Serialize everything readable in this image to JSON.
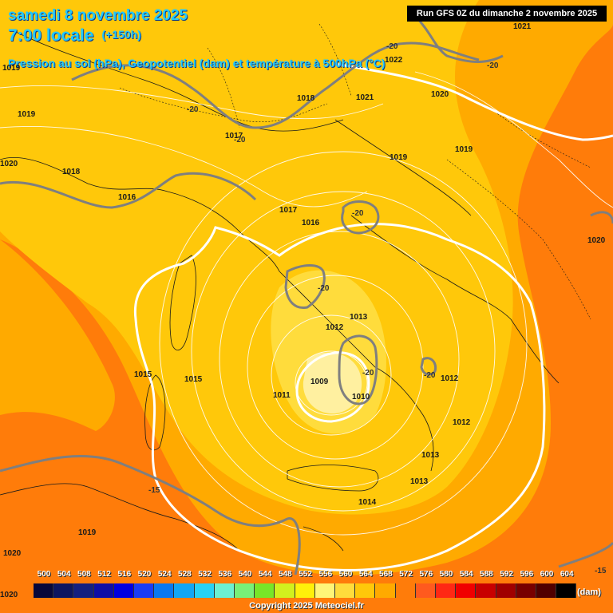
{
  "header": {
    "date_line": "samedi 8 novembre 2025",
    "time_line": "7:00 locale",
    "lead_time": "(+150h)",
    "subtitle": "Pression au sol (hPa), Geopotentiel (dam) et température à 500hPa (°C)",
    "run_info": "Run GFS 0Z du dimanche 2 novembre 2025"
  },
  "footer": {
    "copyright": "Copyright 2025 Meteociel.fr"
  },
  "legend": {
    "unit": "(dam)",
    "scale": [
      {
        "label": "500",
        "color": "#08083a"
      },
      {
        "label": "504",
        "color": "#0d1660"
      },
      {
        "label": "508",
        "color": "#14207f"
      },
      {
        "label": "512",
        "color": "#0e0ea6"
      },
      {
        "label": "516",
        "color": "#0000e0"
      },
      {
        "label": "520",
        "color": "#1a3cf5"
      },
      {
        "label": "524",
        "color": "#0a78f0"
      },
      {
        "label": "528",
        "color": "#12a6f5"
      },
      {
        "label": "532",
        "color": "#28d2f5"
      },
      {
        "label": "536",
        "color": "#6cf0d2"
      },
      {
        "label": "540",
        "color": "#78f078"
      },
      {
        "label": "544",
        "color": "#78e628"
      },
      {
        "label": "548",
        "color": "#d2f01e"
      },
      {
        "label": "552",
        "color": "#fff00a"
      },
      {
        "label": "556",
        "color": "#fff578"
      },
      {
        "label": "560",
        "color": "#ffdc3c"
      },
      {
        "label": "564",
        "color": "#ffc80a"
      },
      {
        "label": "568",
        "color": "#ffaa00"
      },
      {
        "label": "572",
        "color": "#ff7c0a"
      },
      {
        "label": "576",
        "color": "#ff5a1e"
      },
      {
        "label": "580",
        "color": "#ff2814"
      },
      {
        "label": "584",
        "color": "#f00000"
      },
      {
        "label": "588",
        "color": "#c80000"
      },
      {
        "label": "592",
        "color": "#a00000"
      },
      {
        "label": "596",
        "color": "#780000"
      },
      {
        "label": "600",
        "color": "#500000"
      },
      {
        "label": "604",
        "color": "#000000"
      }
    ]
  },
  "pressure_labels": [
    "1019",
    "1019",
    "1020",
    "1018",
    "1016",
    "1017",
    "1018",
    "1021",
    "1020",
    "1021",
    "1022",
    "1019",
    "1019",
    "1017",
    "1016",
    "1020",
    "1013",
    "1012",
    "1009",
    "1011",
    "1010",
    "1012",
    "1012",
    "1015",
    "1015",
    "1013",
    "1013",
    "1014",
    "1019",
    "1020",
    "1020"
  ],
  "temp_labels": [
    "-20",
    "-20",
    "-20",
    "-20",
    "-20",
    "-20",
    "-20",
    "-20",
    "-15",
    "-15"
  ]
}
